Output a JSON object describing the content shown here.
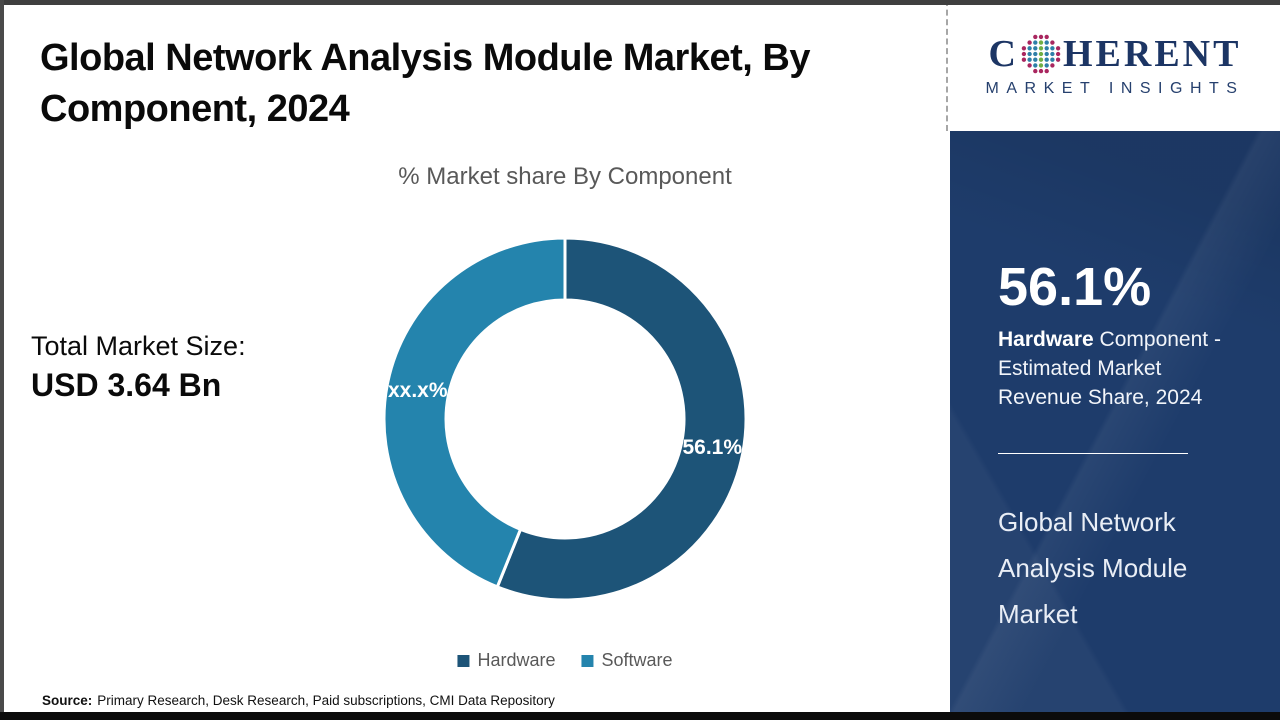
{
  "header": {
    "title": "Global Network Analysis Module Market, By Component, 2024"
  },
  "total_market": {
    "label": "Total Market Size:",
    "value": "USD 3.64 Bn"
  },
  "chart_data": {
    "type": "pie",
    "subtype": "donut",
    "title": "% Market share By Component",
    "categories": [
      "Hardware",
      "Software"
    ],
    "values": [
      56.1,
      43.9
    ],
    "slice_labels": [
      "56.1%",
      "xx.x%"
    ],
    "colors": [
      "#1d5478",
      "#2484ad"
    ],
    "start_angle_deg": 0,
    "direction": "clockwise",
    "donut_hole_ratio": 0.66,
    "legend_position": "bottom",
    "legend": [
      "Hardware",
      "Software"
    ],
    "separator_color": "#ffffff"
  },
  "source": {
    "prefix": "Source:",
    "text": "Primary Research, Desk Research, Paid subscriptions, CMI Data Repository"
  },
  "sidebar": {
    "logo": {
      "word_start": "C",
      "word_end": "HERENT",
      "subtitle": "MARKET INSIGHTS",
      "navy": "#1c3564",
      "globe_teal": "#2e7fa8",
      "globe_green": "#6fae44",
      "globe_magenta": "#a9265f"
    },
    "stat": {
      "value": "56.1%",
      "label_bold": "Hardware",
      "label_rest": " Component - Estimated Market Revenue Share, 2024"
    },
    "market_name": "Global Network Analysis Module Market",
    "panel_color": "#1e3c6b"
  }
}
